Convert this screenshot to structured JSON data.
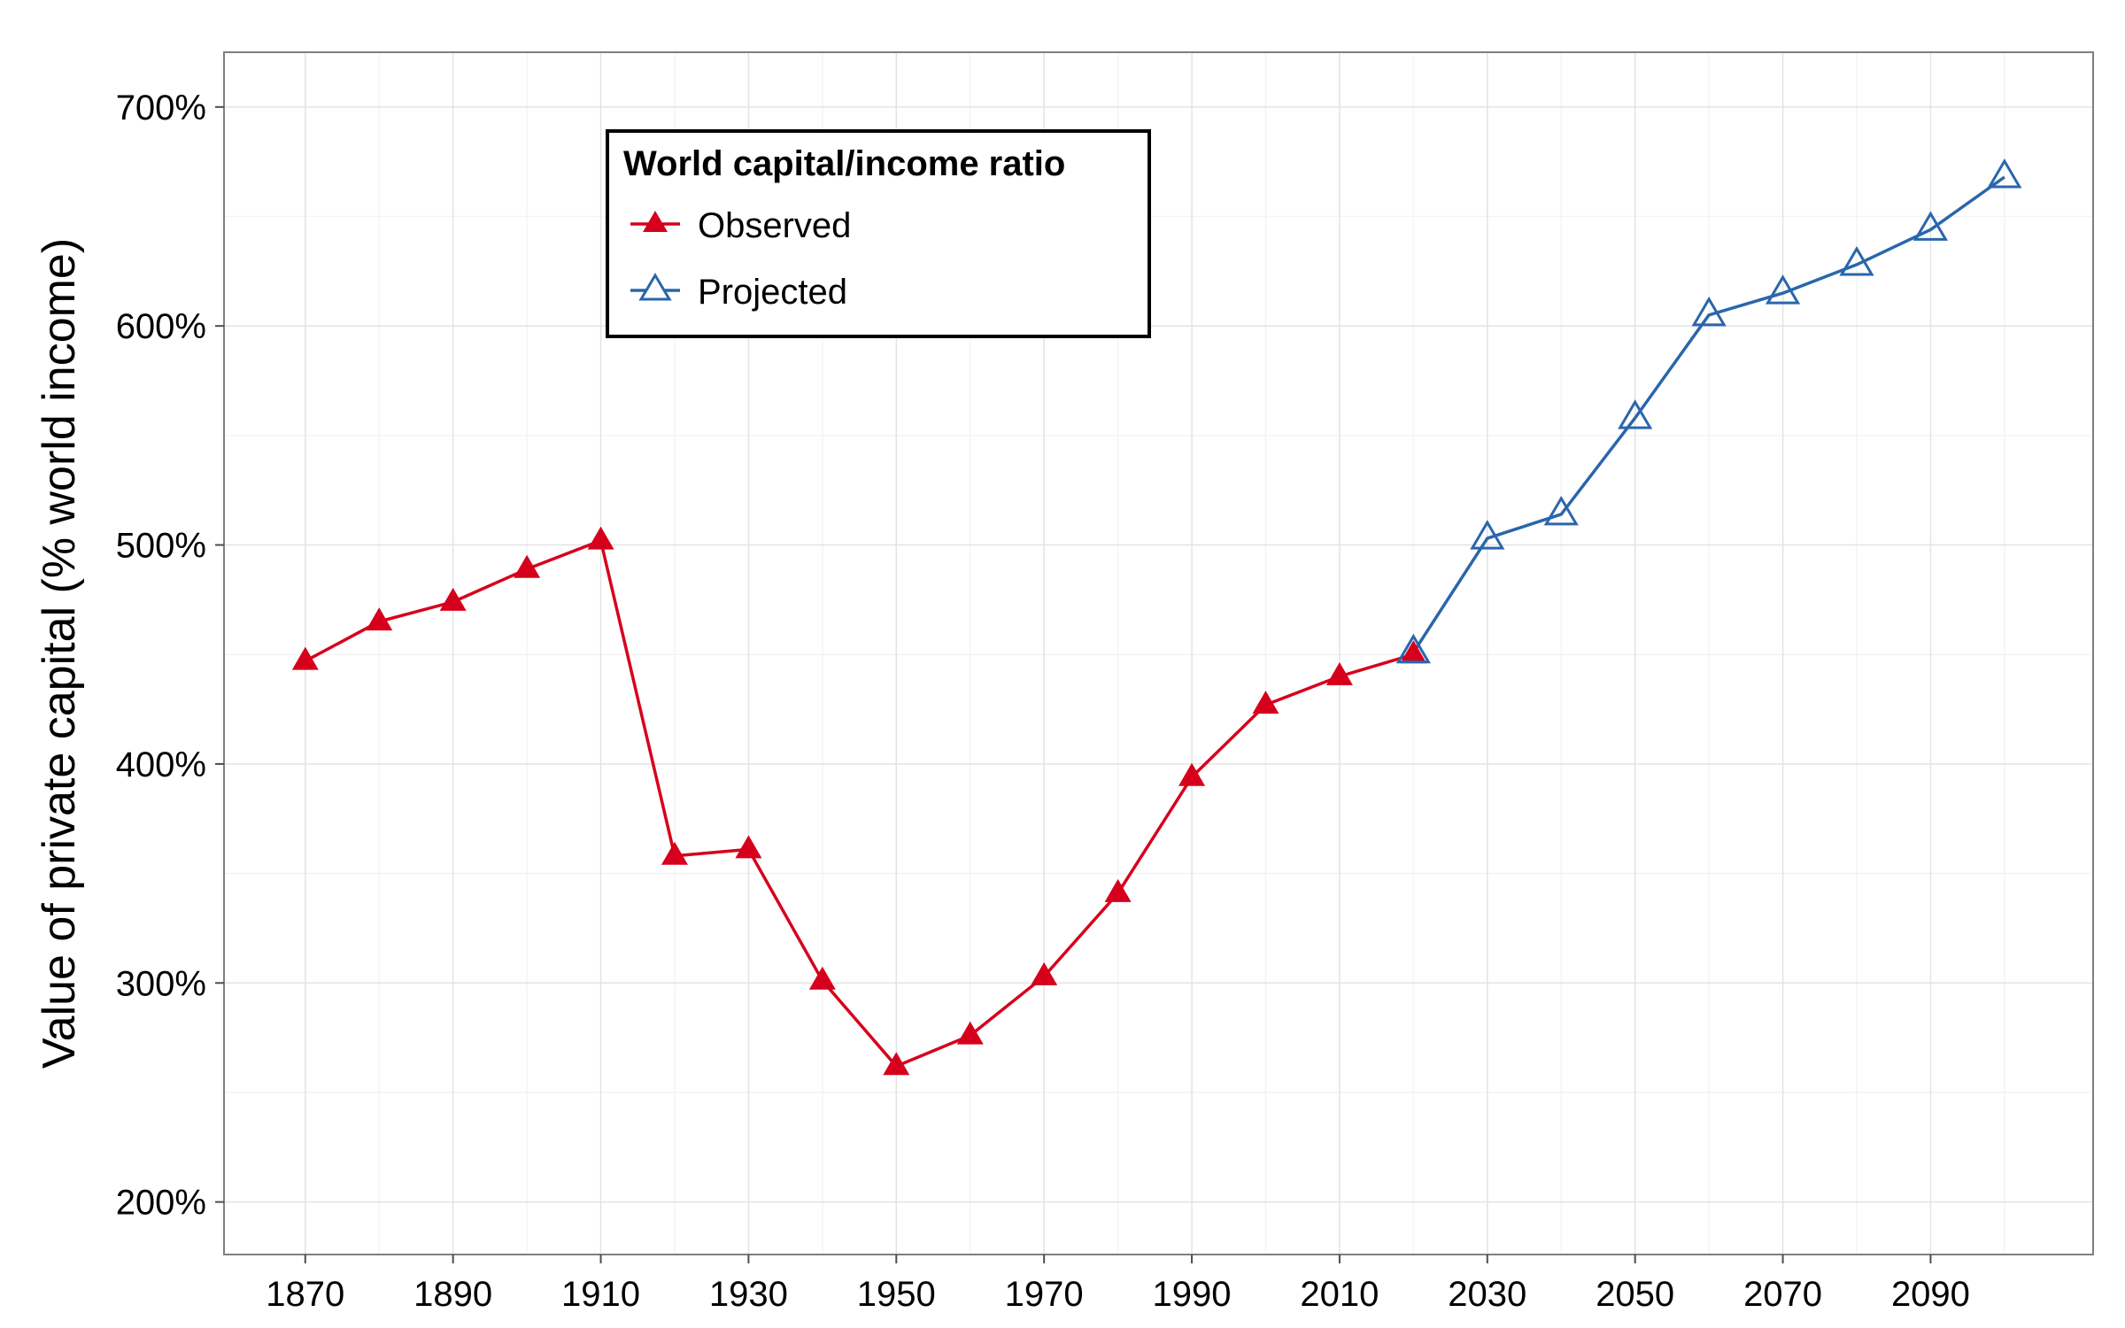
{
  "chart_data": {
    "type": "line",
    "title": "",
    "xlabel": "",
    "ylabel": "Value of private capital (% world income)",
    "xlim": [
      1859,
      2112
    ],
    "ylim": [
      1.76,
      7.25
    ],
    "x_ticks": [
      1870,
      1890,
      1910,
      1930,
      1950,
      1970,
      1990,
      2010,
      2030,
      2050,
      2070,
      2090
    ],
    "x_tick_labels": [
      "1870",
      "1890",
      "1910",
      "1930",
      "1950",
      "1970",
      "1990",
      "2010",
      "2030",
      "2050",
      "2070",
      "2090"
    ],
    "y_ticks": [
      2,
      3,
      4,
      5,
      6,
      7
    ],
    "y_tick_labels": [
      "200%",
      "300%",
      "400%",
      "500%",
      "600%",
      "700%"
    ],
    "grid": true,
    "legend": {
      "title": "World capital/income ratio",
      "placement": "top-left (inside plot)"
    },
    "series": [
      {
        "name": "Observed",
        "color": "#d7001c",
        "marker": "filled-triangle",
        "x": [
          1870,
          1880,
          1890,
          1900,
          1910,
          1920,
          1930,
          1940,
          1950,
          1960,
          1970,
          1980,
          1990,
          2000,
          2010,
          2020
        ],
        "y": [
          4.47,
          4.65,
          4.74,
          4.89,
          5.02,
          3.58,
          3.61,
          3.01,
          2.62,
          2.76,
          3.03,
          3.41,
          3.94,
          4.27,
          4.4,
          4.5
        ]
      },
      {
        "name": "Projected",
        "color": "#2a66ac",
        "marker": "open-triangle",
        "x": [
          2020,
          2030,
          2040,
          2050,
          2060,
          2070,
          2080,
          2090,
          2100
        ],
        "y": [
          4.51,
          5.03,
          5.14,
          5.58,
          6.05,
          6.15,
          6.28,
          6.44,
          6.68
        ]
      }
    ]
  }
}
